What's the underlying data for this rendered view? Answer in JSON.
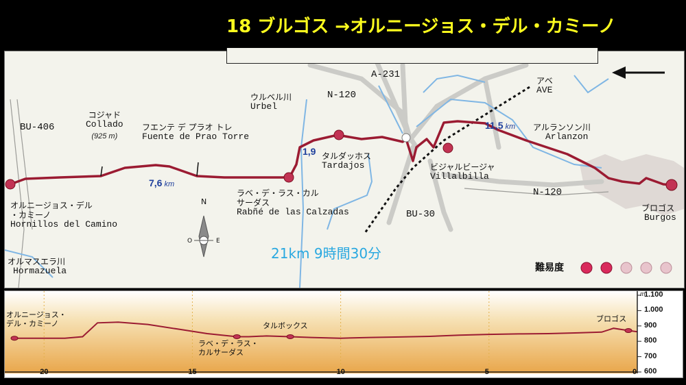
{
  "title": "18 ブルゴス →オルニージョス・デル・カミーノ",
  "map": {
    "roads": {
      "bu406": "BU-406",
      "n120_top": "N-120",
      "a231": "A-231",
      "n120_right": "N-120",
      "bu30": "BU-30"
    },
    "places": {
      "collado_jp": "コジャド",
      "collado_es": "Collado",
      "collado_elev": "(925 m)",
      "fuente_jp": "フエンテ デ プラオ トレ",
      "fuente_es": "Fuente de Prao Torre",
      "urbel_jp": "ウルベル川",
      "urbel_es": "Urbel",
      "tardajos_jp": "タルダッホス",
      "tardajos_es": "Tardajos",
      "rabe_jp1": "ラベ・デ・ラス・カル",
      "rabe_jp2": "サーダス",
      "rabe_es": "Rabñé de las Calzadas",
      "villalbilla_jp": "ビジャルビージャ",
      "villalbilla_es": "Villalbilla",
      "ave_jp": "アベ",
      "ave_es": "AVE",
      "arlanzon_jp": "アルランソン川",
      "arlanzon_es": "Arlanzon",
      "burgos_jp": "ブロゴス",
      "burgos_es": "Burgos",
      "hornillos_jp1": "オルニージョス・デル",
      "hornillos_jp2": "・カミーノ",
      "hornillos_es": "Hornillos del Camino",
      "hormazuela_jp": "オルマスエラ川",
      "hormazuela_es": "Hormazuela"
    },
    "distances": {
      "d1_value": "7,6",
      "d1_unit": "km",
      "d2_value": "1,9",
      "d3_value": "11,5",
      "d3_unit": "km"
    },
    "compass": {
      "n": "N",
      "o": "O",
      "e": "E"
    },
    "summary": "21km 9時間30分",
    "difficulty_label": "難易度",
    "difficulty_level": 2,
    "difficulty_max": 5,
    "colors": {
      "route": "#9b1b32",
      "river": "#7fb6e4",
      "road": "#c8c8c4",
      "title": "#ffff1e",
      "summary": "#29a8e0",
      "distance": "#1e3f9c"
    }
  },
  "profile": {
    "unit": "m",
    "y_ticks": [
      "1.100",
      "1.000",
      "900",
      "800",
      "700",
      "600"
    ],
    "x_ticks": [
      "20",
      "15",
      "10",
      "5",
      "0"
    ],
    "labels": {
      "hornillos1": "オルニージョス・",
      "hornillos2": "デル・カミーノ",
      "rabe1": "ラベ・デ・ラス・",
      "rabe2": "カルサーダス",
      "tardajos": "タルボックス",
      "burgos": "ブロゴス"
    },
    "elevation": {
      "distance_km": [
        21,
        20.2,
        19.3,
        18.7,
        18.2,
        17.5,
        16.5,
        15.5,
        14.5,
        13.5,
        13.1,
        12.5,
        11.7,
        11,
        10,
        9,
        8,
        7,
        6,
        5,
        4,
        3,
        2,
        1.2,
        0.8,
        0.3,
        0
      ],
      "altitude_m": [
        820,
        820,
        820,
        830,
        920,
        925,
        910,
        880,
        850,
        830,
        830,
        835,
        830,
        825,
        820,
        825,
        828,
        832,
        840,
        845,
        848,
        850,
        855,
        860,
        885,
        870,
        862
      ]
    },
    "waypoints_km": [
      21,
      13.5,
      11.7,
      0.3
    ]
  }
}
